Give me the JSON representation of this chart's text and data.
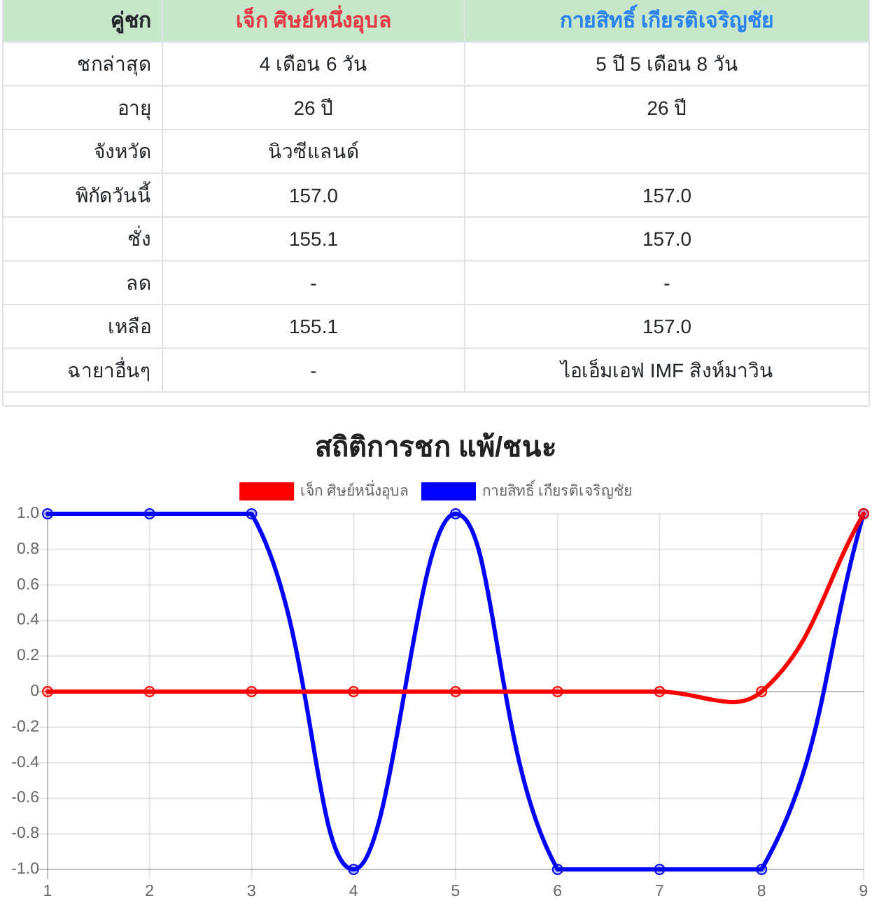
{
  "chart_data": [
    {
      "type": "other",
      "categories": [
        "คู่ชก",
        "เจ็ก ศิษย์หนึ่งอุบล",
        "กายสิทธิ์ เกียรติเจริญชัย"
      ],
      "y_categories": [
        "ชกล่าสุด",
        "อายุ",
        "จังหวัด",
        "พิกัดวันนี้",
        "ชั่ง",
        "ลด",
        "เหลือ",
        "ฉายาอื่นๆ"
      ],
      "cell_labels": [
        [
          "4 เดือน 6 วัน",
          "5 ปี 5 เดือน 8 วัน"
        ],
        [
          "26 ปี",
          "26 ปี"
        ],
        [
          "นิวซีแลนด์",
          null
        ],
        [
          "157.0",
          "157.0"
        ],
        [
          "155.1",
          "157.0"
        ],
        [
          "-",
          "-"
        ],
        [
          "155.1",
          "157.0"
        ],
        [
          "-",
          "ไอเอ็มเอฟ IMF สิงห์มาวิน"
        ]
      ]
    },
    {
      "type": "line",
      "title": "สถิติการชก แพ้/ชนะ",
      "categories": [
        "1",
        "2",
        "3",
        "4",
        "5",
        "6",
        "7",
        "8",
        "9"
      ],
      "series": [
        {
          "name": "เจ็ก ศิษย์หนึ่งอุบล",
          "color": "#ff0000",
          "values": [
            0,
            0,
            0,
            0,
            0,
            0,
            0,
            0,
            1
          ]
        },
        {
          "name": "กายสิทธิ์ เกียรติเจริญชัย",
          "color": "#0000ff",
          "values": [
            1,
            1,
            1,
            -1,
            1,
            -1,
            -1,
            -1,
            1
          ]
        }
      ],
      "ylim": [
        -1,
        1
      ],
      "yticks": [
        {
          "value": 1,
          "label": "1.0"
        },
        0.8,
        0.6,
        0.4,
        0.2,
        0,
        -0.2,
        -0.4,
        -0.6,
        -0.8,
        {
          "value": -1,
          "label": "-1.0"
        }
      ],
      "grid": true,
      "legend": "top",
      "marker": "circle",
      "line_style": "solid"
    }
  ]
}
